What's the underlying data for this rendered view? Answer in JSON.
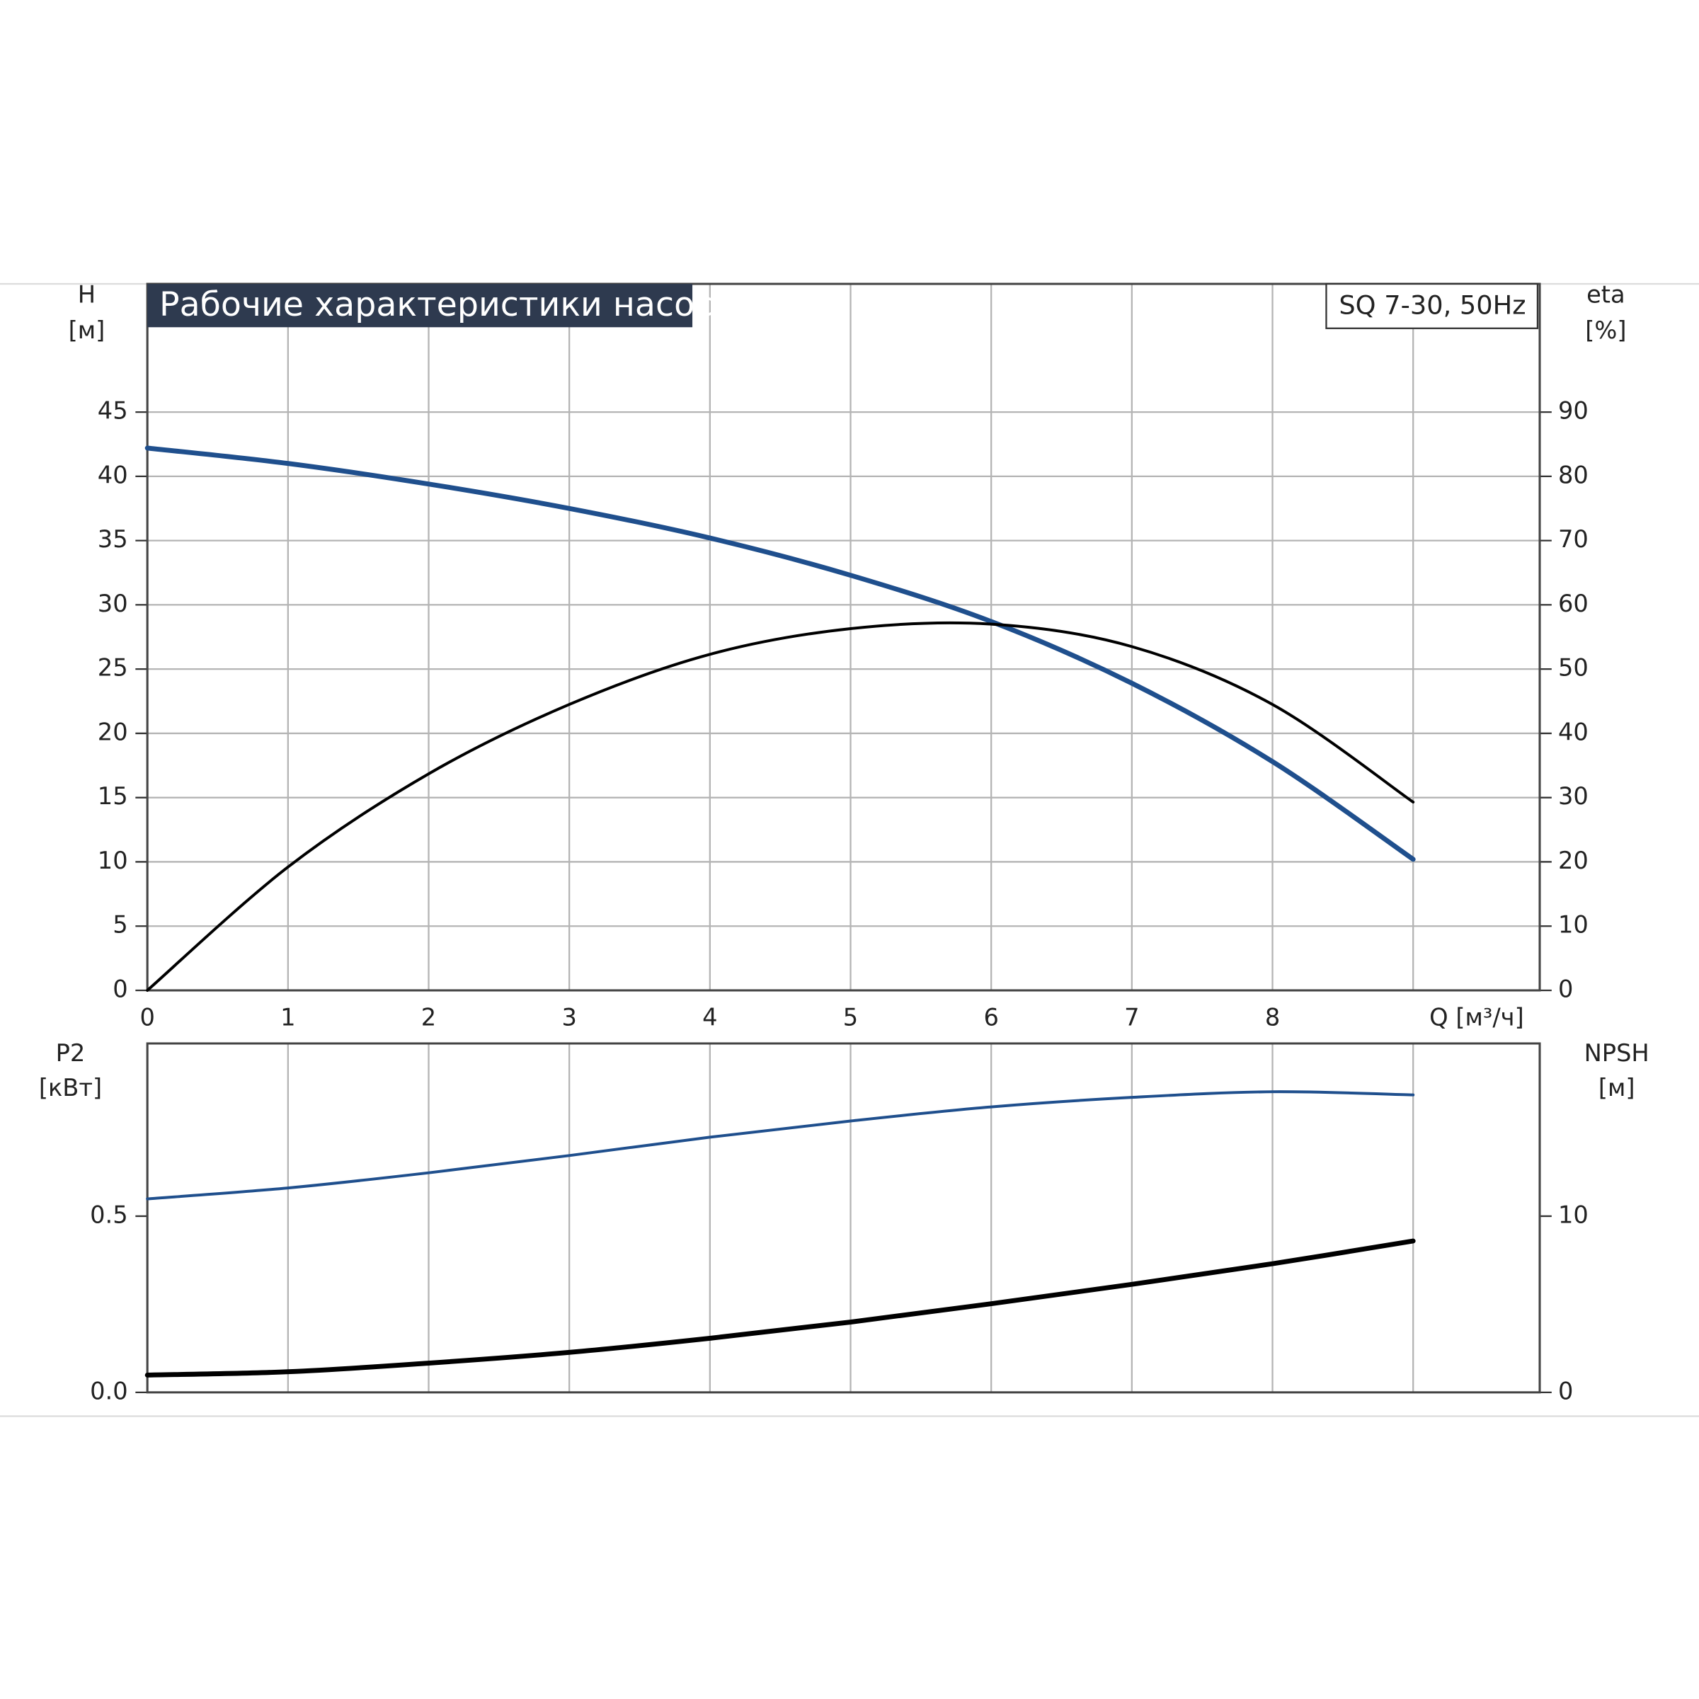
{
  "chart_data": [
    {
      "type": "line",
      "title": "Рабочие характеристики насоса",
      "annotation": "SQ 7-30, 50Hz",
      "x": [
        0,
        1,
        2,
        3,
        4,
        5,
        6,
        7,
        8,
        9
      ],
      "series": [
        {
          "color": "#1f4f8d",
          "values": [
            42.2,
            41.0,
            39.4,
            37.5,
            35.2,
            32.3,
            28.7,
            23.9,
            17.8,
            10.2
          ]
        },
        {
          "color": "#000000",
          "axis": "y2",
          "values": [
            0,
            19.2,
            33.7,
            44.5,
            52.3,
            56.3,
            57.0,
            53.5,
            44.5,
            29.3
          ]
        }
      ],
      "xlim": [
        0,
        9.9
      ],
      "xticks": [
        0,
        1,
        2,
        3,
        4,
        5,
        6,
        7,
        8,
        {
          "value": 9,
          "label": "Q [м³/ч]"
        }
      ],
      "ylim": [
        0,
        50
      ],
      "yticks": [
        0,
        5,
        10,
        15,
        20,
        25,
        30,
        35,
        40,
        45
      ],
      "y2lim": [
        0,
        100
      ],
      "y2ticks": [
        0,
        10,
        20,
        30,
        40,
        50,
        60,
        70,
        80,
        90
      ],
      "ylabel": [
        "H",
        "[м]"
      ],
      "y2label": [
        "eta",
        "[%]"
      ],
      "grid": true
    },
    {
      "type": "line",
      "series": [
        {
          "color": "#1f4f8d",
          "values": [
            0.549,
            0.58,
            0.623,
            0.672,
            0.724,
            0.77,
            0.81,
            0.837,
            0.853,
            0.844
          ]
        },
        {
          "color": "#000000",
          "axis": "y2",
          "values": [
            0.98,
            1.17,
            1.66,
            2.27,
            3.07,
            3.99,
            5.03,
            6.13,
            7.3,
            8.59
          ]
        }
      ],
      "ylim": [
        0,
        0.99
      ],
      "yticks": [
        {
          "value": 0,
          "label": "0.0"
        },
        0.5
      ],
      "y2lim": [
        0,
        19.8
      ],
      "y2ticks": [
        0,
        10
      ],
      "ylabel": [
        "P2",
        "[кВт]"
      ],
      "y2label": [
        "NPSH",
        "[м]"
      ],
      "grid": "x"
    }
  ]
}
